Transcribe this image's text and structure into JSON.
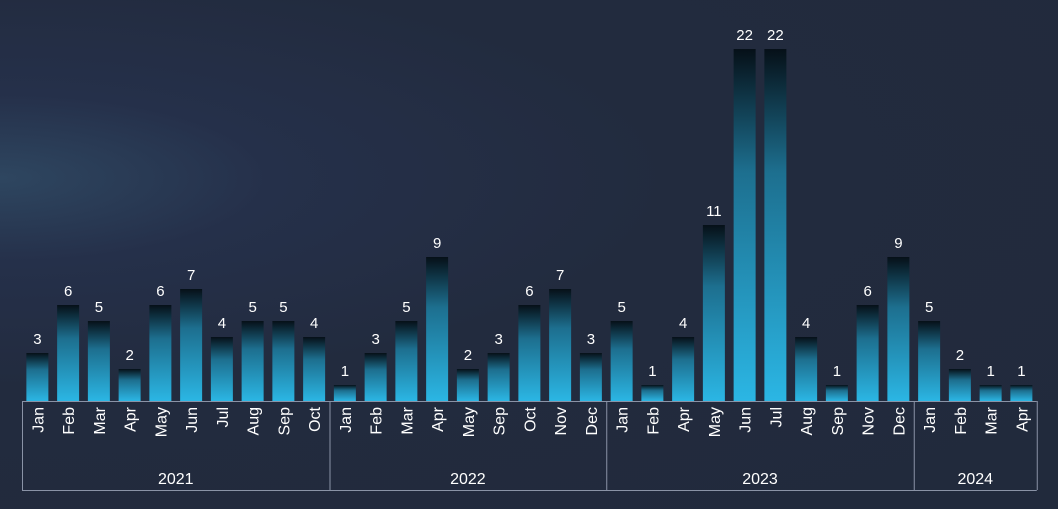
{
  "chart_data": {
    "type": "bar",
    "title": "",
    "xlabel": "",
    "ylabel": "",
    "ylim": [
      0,
      22
    ],
    "grid": false,
    "legend": "none",
    "colors": {
      "bar_top": "#061018",
      "bar_mid": "#1d6f8f",
      "bar_bottom": "#2bb6e4",
      "axis": "#8a93a6",
      "text": "#ffffff"
    },
    "groups": [
      {
        "year": "2021",
        "months": [
          "Jan",
          "Feb",
          "Mar",
          "Apr",
          "May",
          "Jun",
          "Jul",
          "Aug",
          "Sep",
          "Oct"
        ],
        "values": [
          3,
          6,
          5,
          2,
          6,
          7,
          4,
          5,
          5,
          4
        ]
      },
      {
        "year": "2022",
        "months": [
          "Jan",
          "Feb",
          "Mar",
          "Apr",
          "May",
          "Sep",
          "Oct",
          "Nov",
          "Dec"
        ],
        "values": [
          1,
          3,
          5,
          9,
          2,
          3,
          6,
          7,
          3
        ]
      },
      {
        "year": "2023",
        "months": [
          "Jan",
          "Feb",
          "Apr",
          "May",
          "Jun",
          "Jul",
          "Aug",
          "Sep",
          "Nov",
          "Dec"
        ],
        "values": [
          5,
          1,
          4,
          11,
          22,
          22,
          4,
          1,
          6,
          9
        ]
      },
      {
        "year": "2024",
        "months": [
          "Jan",
          "Feb",
          "Mar",
          "Apr"
        ],
        "values": [
          5,
          2,
          1,
          1
        ]
      }
    ]
  }
}
